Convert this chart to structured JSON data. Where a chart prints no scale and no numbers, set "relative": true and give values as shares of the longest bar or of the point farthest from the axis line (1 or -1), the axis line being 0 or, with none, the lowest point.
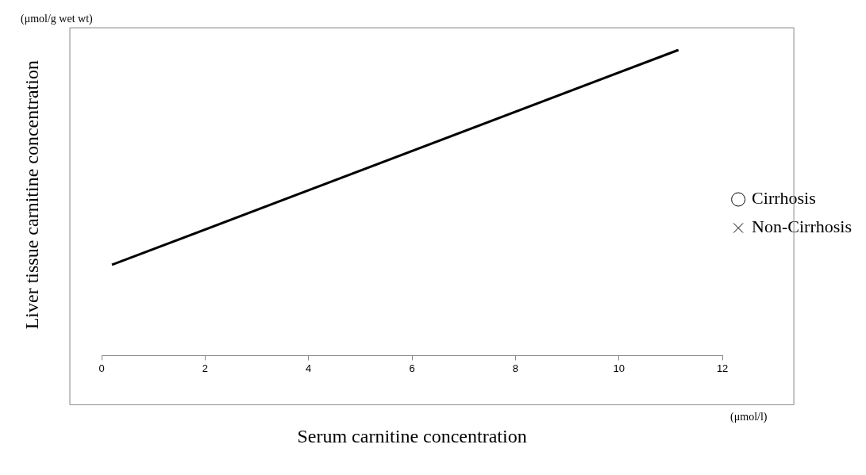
{
  "chart_data": {
    "type": "scatter",
    "xlabel": "Serum carnitine concentration",
    "ylabel": "Liver tissue carnitine concentration",
    "annotations": [
      "(μmol/g wet wt)",
      "(μmol/l)"
    ],
    "xlim": [
      0,
      12
    ],
    "xticks": [
      0,
      2,
      4,
      6,
      8,
      10,
      12
    ],
    "relative": true,
    "grid": false,
    "legend": "right",
    "series": [
      {
        "type": "line",
        "x": [
          0.2,
          11.15
        ],
        "values": [
          0.297,
          1
        ],
        "color": "#000000",
        "line_style": "solid",
        "marker": "none"
      },
      {
        "name": "Cirrhosis",
        "marker": "circle",
        "color": "#000000"
      },
      {
        "name": "Non-Cirrhosis",
        "marker": "cross",
        "color": "#000000"
      }
    ]
  }
}
